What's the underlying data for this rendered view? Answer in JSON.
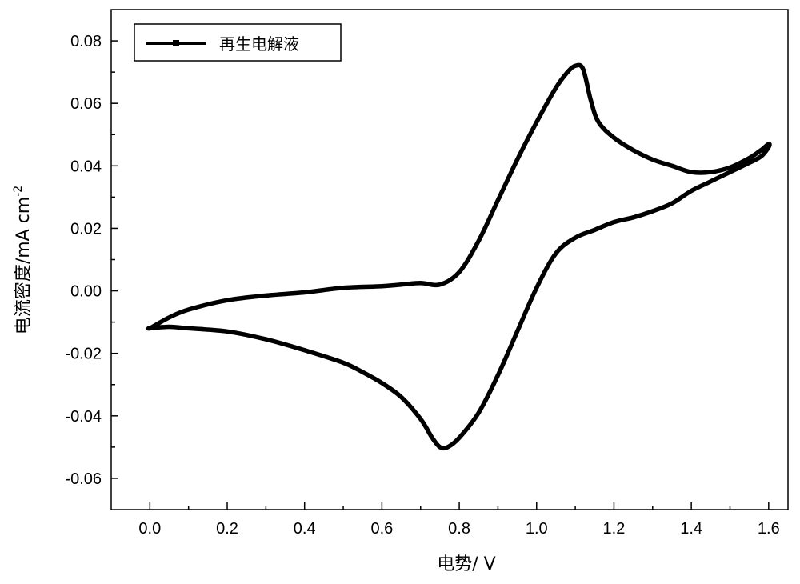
{
  "chart_data": {
    "type": "line",
    "xlabel": "电势/ V",
    "ylabel": "电流密度/mA cm",
    "ylabel_sup": "-2",
    "xlim": [
      -0.1,
      1.65
    ],
    "ylim": [
      -0.07,
      0.09
    ],
    "x_ticks": [
      0.0,
      0.2,
      0.4,
      0.6,
      0.8,
      1.0,
      1.2,
      1.4,
      1.6
    ],
    "x_tick_labels": [
      "0.0",
      "0.2",
      "0.4",
      "0.6",
      "0.8",
      "1.0",
      "1.2",
      "1.4",
      "1.6"
    ],
    "y_ticks": [
      -0.06,
      -0.04,
      -0.02,
      0.0,
      0.02,
      0.04,
      0.06,
      0.08
    ],
    "y_tick_labels": [
      "-0.06",
      "-0.04",
      "-0.02",
      "0.00",
      "0.02",
      "0.04",
      "0.06",
      "0.08"
    ],
    "grid": false,
    "legend_position": "top-left",
    "series": [
      {
        "name": "再生电解液",
        "color": "#000000",
        "x": [
          0.0,
          0.05,
          0.1,
          0.2,
          0.3,
          0.4,
          0.5,
          0.6,
          0.65,
          0.7,
          0.75,
          0.8,
          0.85,
          0.9,
          0.95,
          1.0,
          1.05,
          1.08,
          1.1,
          1.12,
          1.14,
          1.16,
          1.2,
          1.25,
          1.3,
          1.35,
          1.4,
          1.45,
          1.5,
          1.55,
          1.58,
          1.6,
          1.6,
          1.58,
          1.55,
          1.5,
          1.45,
          1.4,
          1.35,
          1.3,
          1.25,
          1.2,
          1.15,
          1.1,
          1.05,
          1.0,
          0.95,
          0.9,
          0.85,
          0.8,
          0.77,
          0.75,
          0.73,
          0.7,
          0.65,
          0.6,
          0.55,
          0.5,
          0.4,
          0.3,
          0.2,
          0.1,
          0.05,
          0.0,
          0.0
        ],
        "y": [
          -0.012,
          -0.0085,
          -0.006,
          -0.003,
          -0.0015,
          -0.0005,
          0.001,
          0.0015,
          0.002,
          0.0025,
          0.002,
          0.006,
          0.016,
          0.029,
          0.042,
          0.054,
          0.065,
          0.07,
          0.072,
          0.071,
          0.061,
          0.054,
          0.049,
          0.045,
          0.042,
          0.04,
          0.038,
          0.038,
          0.0395,
          0.0425,
          0.045,
          0.047,
          0.046,
          0.043,
          0.041,
          0.038,
          0.035,
          0.032,
          0.028,
          0.0255,
          0.0235,
          0.022,
          0.0195,
          0.017,
          0.012,
          0.001,
          -0.013,
          -0.027,
          -0.039,
          -0.047,
          -0.05,
          -0.05,
          -0.047,
          -0.041,
          -0.034,
          -0.0295,
          -0.026,
          -0.023,
          -0.019,
          -0.0155,
          -0.013,
          -0.012,
          -0.0115,
          -0.012,
          -0.012
        ]
      }
    ]
  }
}
